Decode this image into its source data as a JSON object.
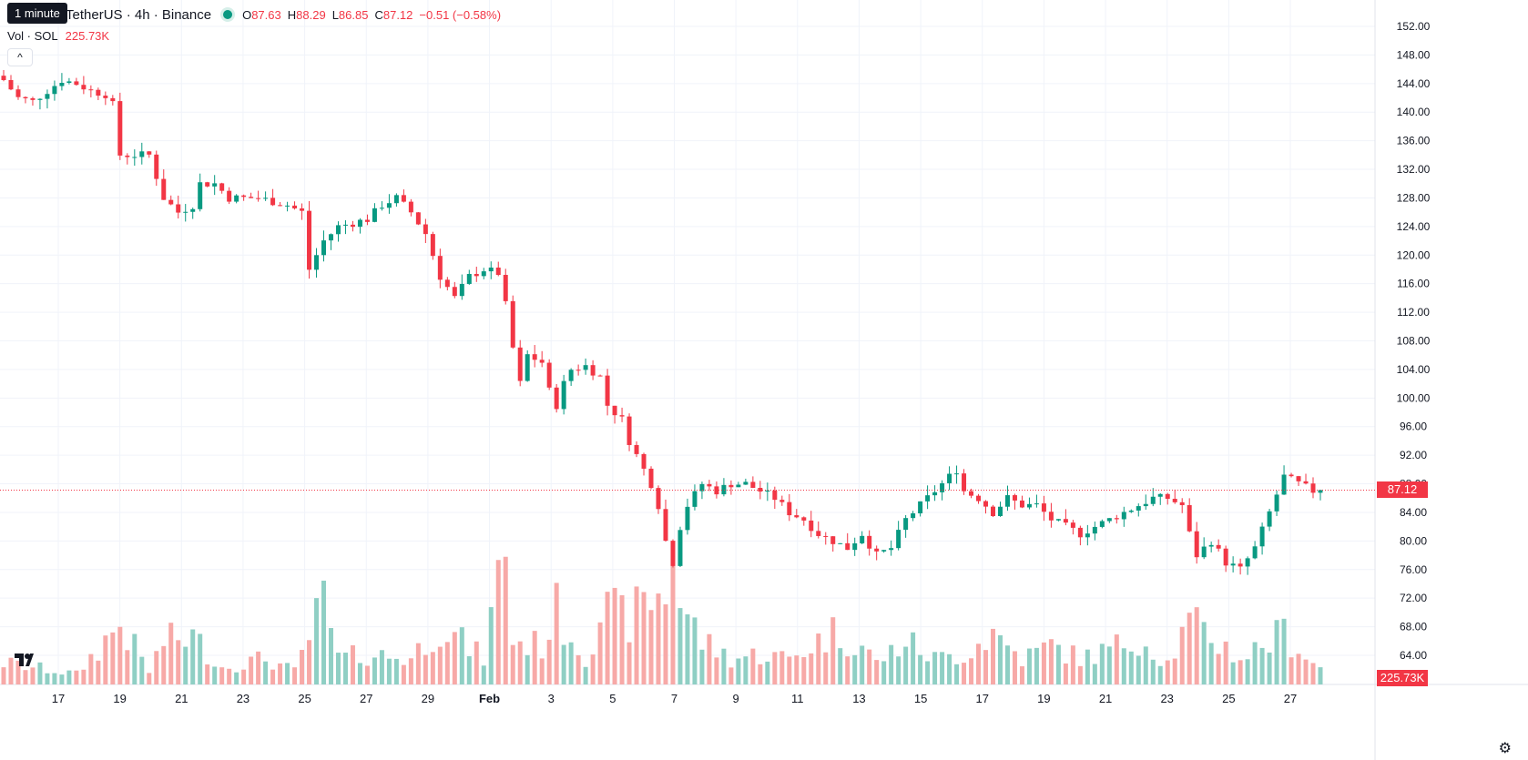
{
  "legend": {
    "symbol": "TetherUS · 4h · Binance",
    "o_label": "O",
    "o_value": "87.63",
    "h_label": "H",
    "h_value": "88.29",
    "l_label": "L",
    "l_value": "86.85",
    "c_label": "C",
    "c_value": "87.12",
    "change": "−0.51 (−0.58%)"
  },
  "tooltip": "1 minute",
  "volume_legend": {
    "label": "Vol · SOL",
    "value": "225.73K"
  },
  "last_price_tag": "87.12",
  "volume_tag": "225.73K",
  "colors": {
    "up": "#089981",
    "down": "#f23645",
    "up_vol": "#8fcfc4",
    "down_vol": "#f7a9a7"
  },
  "chart_data": {
    "type": "candlestick",
    "yticks": [
      "152.00",
      "148.00",
      "144.00",
      "140.00",
      "136.00",
      "132.00",
      "128.00",
      "124.00",
      "120.00",
      "116.00",
      "112.00",
      "108.00",
      "104.00",
      "100.00",
      "96.00",
      "92.00",
      "88.00",
      "84.00",
      "80.00",
      "76.00",
      "72.00",
      "68.00",
      "64.00"
    ],
    "ylim": [
      62.5,
      154
    ],
    "xticks": [
      "17",
      "19",
      "21",
      "23",
      "25",
      "27",
      "29",
      "Feb",
      "3",
      "5",
      "7",
      "9",
      "11",
      "13",
      "15",
      "17",
      "19",
      "21",
      "23",
      "25",
      "27"
    ],
    "last_close": 87.12,
    "close_path": [
      [
        0,
        144.5
      ],
      [
        2,
        142
      ],
      [
        4,
        141.5
      ],
      [
        6,
        143
      ],
      [
        8,
        144.5
      ],
      [
        10,
        144
      ],
      [
        12,
        143
      ],
      [
        14,
        142.5
      ],
      [
        15,
        141
      ],
      [
        16,
        134
      ],
      [
        18,
        134
      ],
      [
        20,
        134
      ],
      [
        21,
        131
      ],
      [
        22,
        128
      ],
      [
        24,
        126
      ],
      [
        26,
        127
      ],
      [
        27,
        130
      ],
      [
        29,
        130
      ],
      [
        31,
        128
      ],
      [
        33,
        128
      ],
      [
        35,
        128
      ],
      [
        37,
        127.5
      ],
      [
        39,
        127
      ],
      [
        41,
        126
      ],
      [
        42,
        118
      ],
      [
        44,
        122
      ],
      [
        46,
        124
      ],
      [
        48,
        124.5
      ],
      [
        50,
        125
      ],
      [
        52,
        127
      ],
      [
        54,
        128
      ],
      [
        56,
        126
      ],
      [
        58,
        123
      ],
      [
        59,
        120
      ],
      [
        60,
        117
      ],
      [
        62,
        114
      ],
      [
        64,
        117
      ],
      [
        66,
        118
      ],
      [
        68,
        117.5
      ],
      [
        69,
        113
      ],
      [
        70,
        107
      ],
      [
        71,
        102
      ],
      [
        72,
        106
      ],
      [
        74,
        105
      ],
      [
        75,
        101
      ],
      [
        76,
        99
      ],
      [
        77,
        102
      ],
      [
        78,
        104
      ],
      [
        80,
        104.5
      ],
      [
        82,
        103
      ],
      [
        83,
        99
      ],
      [
        85,
        97
      ],
      [
        86,
        94
      ],
      [
        88,
        90
      ],
      [
        89,
        88
      ],
      [
        90,
        85
      ],
      [
        91,
        80
      ],
      [
        92,
        77
      ],
      [
        93,
        82
      ],
      [
        94,
        85
      ],
      [
        96,
        88
      ],
      [
        98,
        87
      ],
      [
        100,
        88
      ],
      [
        102,
        88
      ],
      [
        104,
        87
      ],
      [
        106,
        86
      ],
      [
        108,
        84
      ],
      [
        110,
        83
      ],
      [
        112,
        81
      ],
      [
        114,
        80
      ],
      [
        116,
        79
      ],
      [
        118,
        81
      ],
      [
        120,
        78
      ],
      [
        122,
        79
      ],
      [
        124,
        83
      ],
      [
        126,
        85
      ],
      [
        128,
        87
      ],
      [
        130,
        89
      ],
      [
        131,
        90
      ],
      [
        132,
        87
      ],
      [
        134,
        86
      ],
      [
        136,
        84
      ],
      [
        138,
        86
      ],
      [
        140,
        85
      ],
      [
        142,
        85
      ],
      [
        144,
        83
      ],
      [
        146,
        82
      ],
      [
        148,
        81
      ],
      [
        150,
        82
      ],
      [
        152,
        83
      ],
      [
        154,
        84
      ],
      [
        156,
        85
      ],
      [
        158,
        86
      ],
      [
        160,
        86
      ],
      [
        162,
        85
      ],
      [
        163,
        81
      ],
      [
        164,
        78
      ],
      [
        166,
        80
      ],
      [
        168,
        77
      ],
      [
        170,
        76
      ],
      [
        172,
        79
      ],
      [
        174,
        84
      ],
      [
        176,
        89
      ],
      [
        178,
        88
      ],
      [
        180,
        87
      ],
      [
        181,
        87.12
      ]
    ],
    "volume_path": [
      [
        0,
        0.25
      ],
      [
        10,
        0.12
      ],
      [
        16,
        0.7
      ],
      [
        20,
        0.15
      ],
      [
        22,
        0.5
      ],
      [
        26,
        0.55
      ],
      [
        30,
        0.2
      ],
      [
        36,
        0.3
      ],
      [
        40,
        0.15
      ],
      [
        44,
        0.95
      ],
      [
        46,
        0.3
      ],
      [
        50,
        0.35
      ],
      [
        56,
        0.3
      ],
      [
        60,
        0.7
      ],
      [
        62,
        0.55
      ],
      [
        66,
        0.3
      ],
      [
        69,
        1.7
      ],
      [
        70,
        0.5
      ],
      [
        74,
        0.45
      ],
      [
        76,
        0.85
      ],
      [
        80,
        0.3
      ],
      [
        82,
        0.85
      ],
      [
        86,
        0.75
      ],
      [
        89,
        1.0
      ],
      [
        91,
        1.05
      ],
      [
        92,
        1.6
      ],
      [
        93,
        0.95
      ],
      [
        96,
        0.5
      ],
      [
        100,
        0.3
      ],
      [
        104,
        0.35
      ],
      [
        108,
        0.3
      ],
      [
        114,
        0.6
      ],
      [
        118,
        0.45
      ],
      [
        120,
        0.25
      ],
      [
        124,
        0.5
      ],
      [
        128,
        0.3
      ],
      [
        132,
        0.35
      ],
      [
        136,
        0.6
      ],
      [
        140,
        0.3
      ],
      [
        144,
        0.45
      ],
      [
        148,
        0.3
      ],
      [
        152,
        0.4
      ],
      [
        156,
        0.55
      ],
      [
        160,
        0.25
      ],
      [
        163,
        0.7
      ],
      [
        166,
        0.55
      ],
      [
        170,
        0.3
      ],
      [
        174,
        0.5
      ],
      [
        176,
        0.6
      ],
      [
        180,
        0.25
      ],
      [
        181,
        0.2
      ]
    ]
  }
}
